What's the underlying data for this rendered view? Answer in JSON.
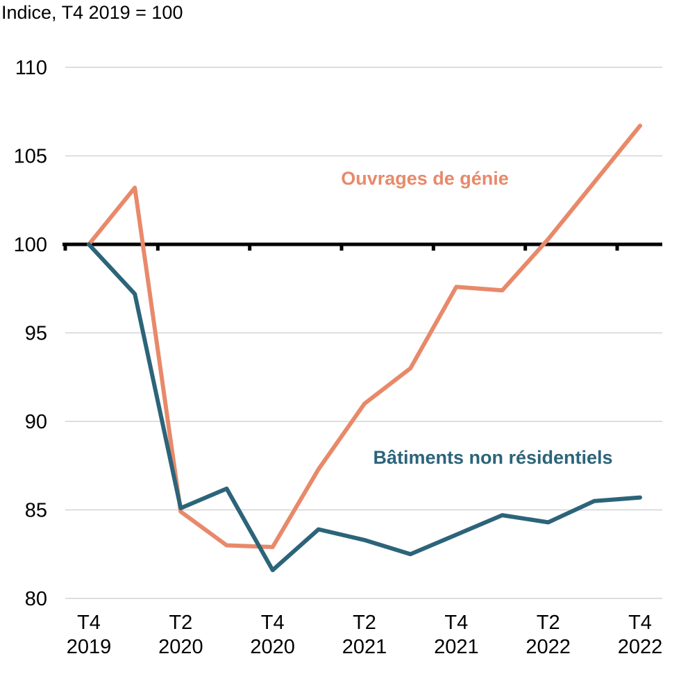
{
  "chart_data": {
    "type": "line",
    "unit_label": "Indice, T4 2019 = 100",
    "ylim": [
      80,
      110
    ],
    "yticks": [
      80,
      85,
      90,
      95,
      100,
      105,
      110
    ],
    "grid": true,
    "reference_line": 100,
    "x": [
      "T4 2019",
      "T1 2020",
      "T2 2020",
      "T3 2020",
      "T4 2020",
      "T1 2021",
      "T2 2021",
      "T3 2021",
      "T4 2021",
      "T1 2022",
      "T2 2022",
      "T3 2022",
      "T4 2022"
    ],
    "xtick_labels": [
      {
        "index": 0,
        "line1": "T4",
        "line2": "2019"
      },
      {
        "index": 2,
        "line1": "T2",
        "line2": "2020"
      },
      {
        "index": 4,
        "line1": "T4",
        "line2": "2020"
      },
      {
        "index": 6,
        "line1": "T2",
        "line2": "2021"
      },
      {
        "index": 8,
        "line1": "T4",
        "line2": "2021"
      },
      {
        "index": 10,
        "line1": "T2",
        "line2": "2022"
      },
      {
        "index": 12,
        "line1": "T4",
        "line2": "2022"
      }
    ],
    "series": [
      {
        "name": "Ouvrages de génie",
        "color": "#e8896a",
        "values": [
          100.0,
          103.2,
          84.9,
          83.0,
          82.9,
          87.3,
          91.0,
          93.0,
          97.6,
          97.4,
          100.3,
          103.5,
          106.7
        ]
      },
      {
        "name": "Bâtiments non résidentiels",
        "color": "#2c6479",
        "values": [
          100.0,
          97.2,
          85.1,
          86.2,
          81.6,
          83.9,
          83.3,
          82.5,
          83.6,
          84.7,
          84.3,
          85.5,
          85.7
        ]
      }
    ]
  }
}
